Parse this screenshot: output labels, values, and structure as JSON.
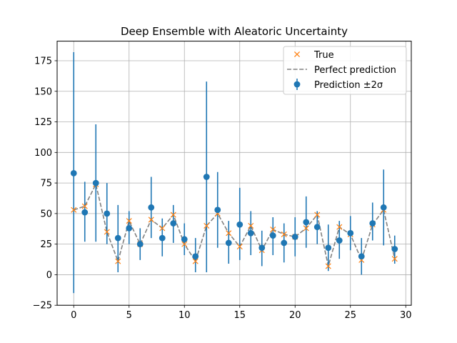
{
  "chart_data": {
    "type": "scatter",
    "title": "Deep Ensemble with Aleatoric Uncertainty",
    "xlabel": "",
    "ylabel": "",
    "xlim": [
      -1.5,
      30.5
    ],
    "ylim": [
      -25,
      191
    ],
    "xticks": [
      0,
      5,
      10,
      15,
      20,
      25,
      30
    ],
    "yticks": [
      -25,
      0,
      25,
      50,
      75,
      100,
      125,
      150,
      175
    ],
    "grid": true,
    "legend_position": "top-right",
    "colors": {
      "prediction": "#1f77b4",
      "true": "#ff7f0e",
      "perfect": "#808080",
      "grid": "#b0b0b0"
    },
    "x": [
      0,
      1,
      2,
      3,
      4,
      5,
      6,
      7,
      8,
      9,
      10,
      11,
      12,
      13,
      14,
      15,
      16,
      17,
      18,
      19,
      20,
      21,
      22,
      23,
      24,
      25,
      26,
      27,
      28,
      29
    ],
    "series": [
      {
        "name": "True",
        "marker": "x",
        "values": [
          53,
          56,
          74,
          35,
          11,
          44,
          25,
          45,
          38,
          49,
          25,
          11,
          40,
          50,
          34,
          23,
          40,
          20,
          37,
          33,
          31,
          38,
          49,
          7,
          39,
          33,
          12,
          41,
          53,
          13
        ]
      },
      {
        "name": "Perfect prediction",
        "style": "dashed-line",
        "values": [
          53,
          56,
          74,
          35,
          11,
          44,
          25,
          45,
          38,
          49,
          25,
          11,
          40,
          50,
          34,
          23,
          40,
          20,
          37,
          33,
          31,
          38,
          49,
          7,
          39,
          33,
          12,
          41,
          53,
          13
        ]
      },
      {
        "name": "Prediction ±2σ",
        "marker": "o",
        "values": [
          83,
          51,
          75,
          50,
          30,
          38,
          25,
          55,
          30,
          42,
          29,
          15,
          80,
          53,
          26,
          41,
          34,
          22,
          32,
          26,
          31,
          43,
          39,
          22,
          28,
          34,
          15,
          42,
          55,
          21
        ],
        "err_low": [
          -15,
          27,
          27,
          25,
          2,
          25,
          12,
          30,
          15,
          26,
          16,
          2,
          2,
          22,
          9,
          12,
          16,
          7,
          16,
          10,
          15,
          22,
          25,
          3,
          13,
          20,
          0,
          28,
          24,
          9
        ],
        "err_high": [
          182,
          76,
          123,
          75,
          57,
          52,
          38,
          80,
          46,
          57,
          42,
          30,
          158,
          84,
          44,
          71,
          52,
          36,
          47,
          42,
          47,
          64,
          52,
          41,
          44,
          48,
          30,
          59,
          86,
          32
        ]
      }
    ]
  }
}
